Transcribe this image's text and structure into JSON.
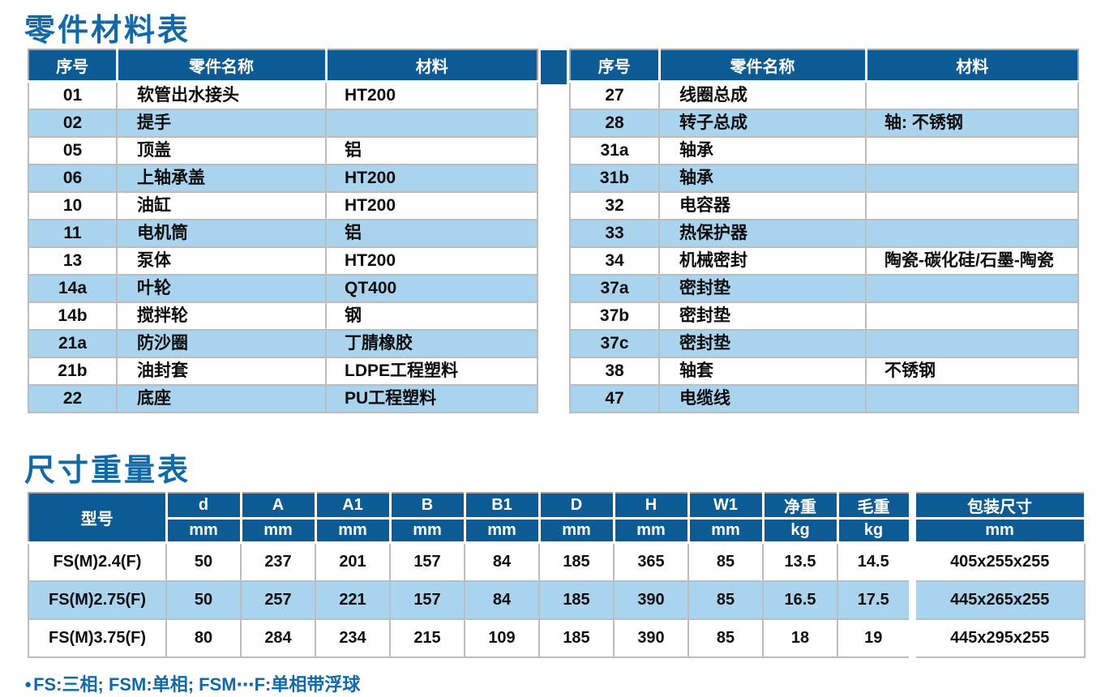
{
  "colors": {
    "header": "#0c5b94",
    "alt": "#aad3ee",
    "title": "#1169a8",
    "outer": "#a6a6a6",
    "inner": "#bdbdbd",
    "header_text": "#ffffff",
    "body_text": "#0d0d0d"
  },
  "titles": {
    "parts": "零件材料表",
    "dims": "尺寸重量表"
  },
  "parts_table": {
    "columns": [
      "序号",
      "零件名称",
      "材料"
    ],
    "left_rows": [
      [
        "01",
        "软管出水接头",
        "HT200"
      ],
      [
        "02",
        "提手",
        ""
      ],
      [
        "05",
        "顶盖",
        "铝"
      ],
      [
        "06",
        "上轴承盖",
        "HT200"
      ],
      [
        "10",
        "油缸",
        "HT200"
      ],
      [
        "11",
        "电机筒",
        "铝"
      ],
      [
        "13",
        "泵体",
        "HT200"
      ],
      [
        "14a",
        "叶轮",
        "QT400"
      ],
      [
        "14b",
        "搅拌轮",
        "钢"
      ],
      [
        "21a",
        "防沙圈",
        "丁腈橡胶"
      ],
      [
        "21b",
        "油封套",
        "LDPE工程塑料"
      ],
      [
        "22",
        "底座",
        "PU工程塑料"
      ]
    ],
    "right_rows": [
      [
        "27",
        "线圈总成",
        ""
      ],
      [
        "28",
        "转子总成",
        "轴: 不锈钢"
      ],
      [
        "31a",
        "轴承",
        ""
      ],
      [
        "31b",
        "轴承",
        ""
      ],
      [
        "32",
        "电容器",
        ""
      ],
      [
        "33",
        "热保护器",
        ""
      ],
      [
        "34",
        "机械密封",
        "陶瓷-碳化硅/石墨-陶瓷"
      ],
      [
        "37a",
        "密封垫",
        ""
      ],
      [
        "37b",
        "密封垫",
        ""
      ],
      [
        "37c",
        "密封垫",
        ""
      ],
      [
        "38",
        "轴套",
        "不锈钢"
      ],
      [
        "47",
        "电缆线",
        ""
      ]
    ]
  },
  "dims_table": {
    "model_header": "型号",
    "columns": [
      {
        "label": "d",
        "unit": "mm"
      },
      {
        "label": "A",
        "unit": "mm"
      },
      {
        "label": "A1",
        "unit": "mm"
      },
      {
        "label": "B",
        "unit": "mm"
      },
      {
        "label": "B1",
        "unit": "mm"
      },
      {
        "label": "D",
        "unit": "mm"
      },
      {
        "label": "H",
        "unit": "mm"
      },
      {
        "label": "W1",
        "unit": "mm"
      },
      {
        "label": "净重",
        "unit": "kg"
      },
      {
        "label": "毛重",
        "unit": "kg"
      },
      {
        "label": "包装尺寸",
        "unit": "mm"
      }
    ],
    "rows": [
      {
        "model": "FS(M)2.4(F)",
        "values": [
          "50",
          "237",
          "201",
          "157",
          "84",
          "185",
          "365",
          "85",
          "13.5",
          "14.5",
          "405x255x255"
        ]
      },
      {
        "model": "FS(M)2.75(F)",
        "values": [
          "50",
          "257",
          "221",
          "157",
          "84",
          "185",
          "390",
          "85",
          "16.5",
          "17.5",
          "445x265x255"
        ]
      },
      {
        "model": "FS(M)3.75(F)",
        "values": [
          "80",
          "284",
          "234",
          "215",
          "109",
          "185",
          "390",
          "85",
          "18",
          "19",
          "445x295x255"
        ]
      }
    ]
  },
  "footnote": {
    "bullet": "●",
    "text": "FS:三相; FSM:单相; FSM⋯F:单相带浮球"
  }
}
